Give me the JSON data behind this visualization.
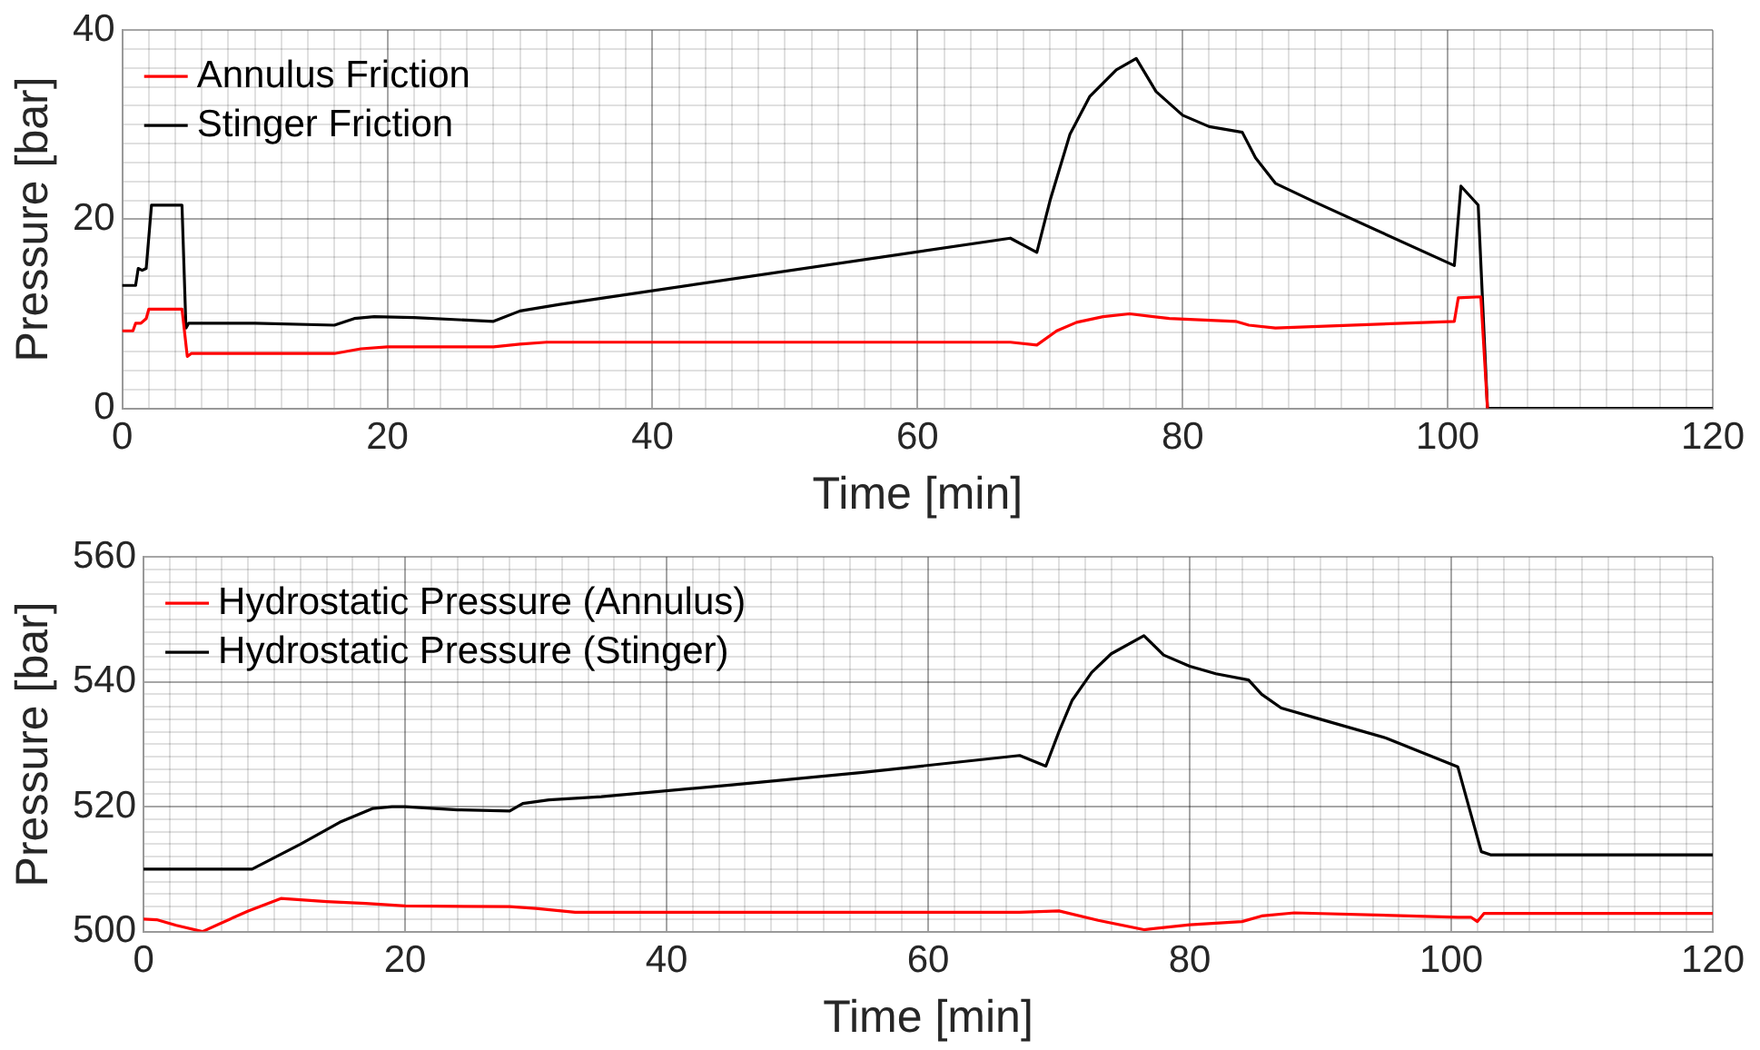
{
  "chart_data": [
    {
      "type": "line",
      "xlabel": "Time [min]",
      "ylabel": "Pressure [bar]",
      "xlim": [
        0,
        120
      ],
      "ylim": [
        0,
        40
      ],
      "xticks": [
        0,
        {
          "value": 2,
          "label": null
        },
        {
          "value": 4,
          "label": null
        },
        {
          "value": 6,
          "label": null
        },
        {
          "value": 8,
          "label": null
        },
        {
          "value": 10,
          "label": null
        },
        {
          "value": 12,
          "label": null
        },
        {
          "value": 14,
          "label": null
        },
        {
          "value": 16,
          "label": null
        },
        {
          "value": 18,
          "label": null
        },
        20,
        {
          "value": 22,
          "label": null
        },
        {
          "value": 24,
          "label": null
        },
        {
          "value": 26,
          "label": null
        },
        {
          "value": 28,
          "label": null
        },
        {
          "value": 30,
          "label": null
        },
        {
          "value": 32,
          "label": null
        },
        {
          "value": 34,
          "label": null
        },
        {
          "value": 36,
          "label": null
        },
        {
          "value": 38,
          "label": null
        },
        40,
        {
          "value": 42,
          "label": null
        },
        {
          "value": 44,
          "label": null
        },
        {
          "value": 46,
          "label": null
        },
        {
          "value": 48,
          "label": null
        },
        {
          "value": 50,
          "label": null
        },
        {
          "value": 52,
          "label": null
        },
        {
          "value": 54,
          "label": null
        },
        {
          "value": 56,
          "label": null
        },
        {
          "value": 58,
          "label": null
        },
        60,
        {
          "value": 62,
          "label": null
        },
        {
          "value": 64,
          "label": null
        },
        {
          "value": 66,
          "label": null
        },
        {
          "value": 68,
          "label": null
        },
        {
          "value": 70,
          "label": null
        },
        {
          "value": 72,
          "label": null
        },
        {
          "value": 74,
          "label": null
        },
        {
          "value": 76,
          "label": null
        },
        {
          "value": 78,
          "label": null
        },
        80,
        {
          "value": 82,
          "label": null
        },
        {
          "value": 84,
          "label": null
        },
        {
          "value": 86,
          "label": null
        },
        {
          "value": 88,
          "label": null
        },
        {
          "value": 90,
          "label": null
        },
        {
          "value": 92,
          "label": null
        },
        {
          "value": 94,
          "label": null
        },
        {
          "value": 96,
          "label": null
        },
        {
          "value": 98,
          "label": null
        },
        100,
        {
          "value": 102,
          "label": null
        },
        {
          "value": 104,
          "label": null
        },
        {
          "value": 106,
          "label": null
        },
        {
          "value": 108,
          "label": null
        },
        {
          "value": 110,
          "label": null
        },
        {
          "value": 112,
          "label": null
        },
        {
          "value": 114,
          "label": null
        },
        {
          "value": 116,
          "label": null
        },
        {
          "value": 118,
          "label": null
        },
        120
      ],
      "yticks": [
        0,
        {
          "value": 2,
          "label": null
        },
        {
          "value": 4,
          "label": null
        },
        {
          "value": 6,
          "label": null
        },
        {
          "value": 8,
          "label": null
        },
        {
          "value": 10,
          "label": null
        },
        {
          "value": 12,
          "label": null
        },
        {
          "value": 14,
          "label": null
        },
        {
          "value": 16,
          "label": null
        },
        {
          "value": 18,
          "label": null
        },
        20,
        {
          "value": 22,
          "label": null
        },
        {
          "value": 24,
          "label": null
        },
        {
          "value": 26,
          "label": null
        },
        {
          "value": 28,
          "label": null
        },
        {
          "value": 30,
          "label": null
        },
        {
          "value": 32,
          "label": null
        },
        {
          "value": 34,
          "label": null
        },
        {
          "value": 36,
          "label": null
        },
        {
          "value": 38,
          "label": null
        },
        40
      ],
      "grid": true,
      "legend": "top left",
      "series": [
        {
          "name": "Annulus Friction",
          "color": "#ff0000",
          "x": [
            0,
            0.8,
            1,
            1.4,
            1.8,
            2,
            4.5,
            4.9,
            5.2,
            10,
            16,
            18,
            20,
            28,
            30,
            32,
            67,
            69,
            70.5,
            72,
            74,
            76,
            79,
            84,
            85,
            87,
            100.5,
            100.8,
            102.5,
            103
          ],
          "values": [
            8.2,
            8.2,
            9,
            9,
            9.5,
            10.5,
            10.5,
            5.5,
            5.8,
            5.8,
            5.8,
            6.3,
            6.5,
            6.5,
            6.8,
            7,
            7,
            6.7,
            8.2,
            9.1,
            9.7,
            10,
            9.5,
            9.2,
            8.8,
            8.5,
            9.2,
            11.7,
            11.8,
            0
          ]
        },
        {
          "name": "Stinger Friction",
          "color": "#000000",
          "x": [
            0,
            1,
            1.2,
            1.5,
            1.8,
            2.2,
            4.5,
            4.8,
            5,
            10,
            16,
            17.5,
            19,
            22,
            28,
            30,
            33,
            67,
            69,
            70,
            71.5,
            73,
            75,
            76.5,
            78,
            80,
            82,
            84.5,
            85.5,
            87,
            90,
            100.5,
            101,
            102.3,
            103,
            120
          ],
          "values": [
            13,
            13,
            14.8,
            14.6,
            14.8,
            21.5,
            21.5,
            8.5,
            9,
            9,
            8.8,
            9.5,
            9.7,
            9.6,
            9.2,
            10.3,
            11,
            18,
            16.5,
            22,
            29,
            33,
            35.8,
            37,
            33.5,
            31,
            29.8,
            29.2,
            26.5,
            23.8,
            21.8,
            15.1,
            23.5,
            21.5,
            0,
            0
          ]
        }
      ]
    },
    {
      "type": "line",
      "xlabel": "Time [min]",
      "ylabel": "Pressure [bar]",
      "xlim": [
        0,
        120
      ],
      "ylim": [
        500,
        560
      ],
      "xticks": [
        0,
        {
          "value": 2,
          "label": null
        },
        {
          "value": 4,
          "label": null
        },
        {
          "value": 6,
          "label": null
        },
        {
          "value": 8,
          "label": null
        },
        {
          "value": 10,
          "label": null
        },
        {
          "value": 12,
          "label": null
        },
        {
          "value": 14,
          "label": null
        },
        {
          "value": 16,
          "label": null
        },
        {
          "value": 18,
          "label": null
        },
        20,
        {
          "value": 22,
          "label": null
        },
        {
          "value": 24,
          "label": null
        },
        {
          "value": 26,
          "label": null
        },
        {
          "value": 28,
          "label": null
        },
        {
          "value": 30,
          "label": null
        },
        {
          "value": 32,
          "label": null
        },
        {
          "value": 34,
          "label": null
        },
        {
          "value": 36,
          "label": null
        },
        {
          "value": 38,
          "label": null
        },
        40,
        {
          "value": 42,
          "label": null
        },
        {
          "value": 44,
          "label": null
        },
        {
          "value": 46,
          "label": null
        },
        {
          "value": 48,
          "label": null
        },
        {
          "value": 50,
          "label": null
        },
        {
          "value": 52,
          "label": null
        },
        {
          "value": 54,
          "label": null
        },
        {
          "value": 56,
          "label": null
        },
        {
          "value": 58,
          "label": null
        },
        60,
        {
          "value": 62,
          "label": null
        },
        {
          "value": 64,
          "label": null
        },
        {
          "value": 66,
          "label": null
        },
        {
          "value": 68,
          "label": null
        },
        {
          "value": 70,
          "label": null
        },
        {
          "value": 72,
          "label": null
        },
        {
          "value": 74,
          "label": null
        },
        {
          "value": 76,
          "label": null
        },
        {
          "value": 78,
          "label": null
        },
        80,
        {
          "value": 82,
          "label": null
        },
        {
          "value": 84,
          "label": null
        },
        {
          "value": 86,
          "label": null
        },
        {
          "value": 88,
          "label": null
        },
        {
          "value": 90,
          "label": null
        },
        {
          "value": 92,
          "label": null
        },
        {
          "value": 94,
          "label": null
        },
        {
          "value": 96,
          "label": null
        },
        {
          "value": 98,
          "label": null
        },
        100,
        {
          "value": 102,
          "label": null
        },
        {
          "value": 104,
          "label": null
        },
        {
          "value": 106,
          "label": null
        },
        {
          "value": 108,
          "label": null
        },
        {
          "value": 110,
          "label": null
        },
        {
          "value": 112,
          "label": null
        },
        {
          "value": 114,
          "label": null
        },
        {
          "value": 116,
          "label": null
        },
        {
          "value": 118,
          "label": null
        },
        120
      ],
      "yticks": [
        500,
        {
          "value": 502,
          "label": null
        },
        {
          "value": 504,
          "label": null
        },
        {
          "value": 506,
          "label": null
        },
        {
          "value": 508,
          "label": null
        },
        {
          "value": 510,
          "label": null
        },
        {
          "value": 512,
          "label": null
        },
        {
          "value": 514,
          "label": null
        },
        {
          "value": 516,
          "label": null
        },
        {
          "value": 518,
          "label": null
        },
        520,
        {
          "value": 522,
          "label": null
        },
        {
          "value": 524,
          "label": null
        },
        {
          "value": 526,
          "label": null
        },
        {
          "value": 528,
          "label": null
        },
        {
          "value": 530,
          "label": null
        },
        {
          "value": 532,
          "label": null
        },
        {
          "value": 534,
          "label": null
        },
        {
          "value": 536,
          "label": null
        },
        {
          "value": 538,
          "label": null
        },
        540,
        {
          "value": 542,
          "label": null
        },
        {
          "value": 544,
          "label": null
        },
        {
          "value": 546,
          "label": null
        },
        {
          "value": 548,
          "label": null
        },
        {
          "value": 550,
          "label": null
        },
        {
          "value": 552,
          "label": null
        },
        {
          "value": 554,
          "label": null
        },
        {
          "value": 556,
          "label": null
        },
        {
          "value": 558,
          "label": null
        },
        560
      ],
      "grid": true,
      "legend": "top left",
      "series": [
        {
          "name": "Hydrostatic Pressure (Annulus)",
          "color": "#ff0000",
          "x": [
            0,
            1,
            2.5,
            4.5,
            8,
            10.5,
            14,
            17,
            20,
            28,
            30,
            33,
            50,
            67,
            70,
            73,
            76.5,
            80,
            84,
            85.5,
            88,
            100.5,
            101.5,
            102,
            102.5,
            120
          ],
          "values": [
            502,
            501.9,
            501,
            500,
            503.3,
            505.3,
            504.8,
            504.5,
            504.1,
            504,
            503.7,
            503.1,
            503.1,
            503.1,
            503.3,
            501.8,
            500.3,
            501.1,
            501.6,
            502.5,
            503,
            502.3,
            502.3,
            501.6,
            502.9,
            502.9
          ]
        },
        {
          "name": "Hydrostatic Pressure (Stinger)",
          "color": "#000000",
          "x": [
            0,
            8.3,
            12,
            15,
            17.5,
            19,
            20,
            24,
            28,
            29,
            31,
            35,
            45,
            55,
            67,
            69,
            70,
            71,
            72.5,
            74,
            76.5,
            78,
            80,
            82,
            84.5,
            85.5,
            87,
            90,
            95,
            100.5,
            102.3,
            103,
            120
          ],
          "values": [
            510,
            510,
            514,
            517.5,
            519.7,
            520,
            520,
            519.5,
            519.3,
            520.5,
            521.1,
            521.6,
            523.5,
            525.5,
            528.2,
            526.5,
            532,
            537,
            541.5,
            544.5,
            547.4,
            544.3,
            542.5,
            541.3,
            540.3,
            538,
            535.8,
            534,
            531,
            526.4,
            512.8,
            512.3,
            512.3
          ]
        }
      ]
    }
  ]
}
